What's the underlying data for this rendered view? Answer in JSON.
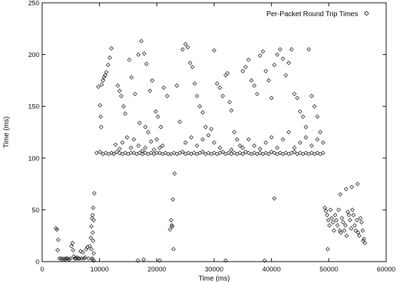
{
  "chart_data": {
    "type": "scatter",
    "xlabel": "Time (ms)",
    "ylabel": "Time (ms)",
    "xlim": [
      0,
      60000
    ],
    "ylim": [
      0,
      250
    ],
    "xticks": [
      0,
      10000,
      20000,
      30000,
      40000,
      50000,
      60000
    ],
    "yticks": [
      0,
      50,
      100,
      150,
      200,
      250
    ],
    "grid": false,
    "legend_position": "top-right",
    "marker": "diamond",
    "series": [
      {
        "name": "Per-Packet Round Trip Times",
        "points": [
          [
            2400,
            32
          ],
          [
            2600,
            31
          ],
          [
            2800,
            21
          ],
          [
            2700,
            11
          ],
          [
            3000,
            3
          ],
          [
            3300,
            3
          ],
          [
            3500,
            2
          ],
          [
            3800,
            3
          ],
          [
            4000,
            2
          ],
          [
            4200,
            3
          ],
          [
            4400,
            3
          ],
          [
            4700,
            2
          ],
          [
            4900,
            3
          ],
          [
            5100,
            15
          ],
          [
            5300,
            18
          ],
          [
            5400,
            11
          ],
          [
            5500,
            5
          ],
          [
            5700,
            3
          ],
          [
            5900,
            3
          ],
          [
            6100,
            4
          ],
          [
            6300,
            3
          ],
          [
            6500,
            3
          ],
          [
            6700,
            10
          ],
          [
            6900,
            3
          ],
          [
            7100,
            9
          ],
          [
            7300,
            3
          ],
          [
            7500,
            4
          ],
          [
            7700,
            12
          ],
          [
            7900,
            14
          ],
          [
            8100,
            3
          ],
          [
            8300,
            15
          ],
          [
            8500,
            23
          ],
          [
            8600,
            34
          ],
          [
            8700,
            42
          ],
          [
            8800,
            45
          ],
          [
            8900,
            52
          ],
          [
            9000,
            40
          ],
          [
            9100,
            66
          ],
          [
            8800,
            28
          ],
          [
            8900,
            20
          ],
          [
            9000,
            8
          ],
          [
            8700,
            3
          ],
          [
            8600,
            12
          ],
          [
            8800,
            2
          ],
          [
            9000,
            1
          ],
          [
            9500,
            105
          ],
          [
            9800,
            169
          ],
          [
            10100,
            151
          ],
          [
            10200,
            140
          ],
          [
            10300,
            130
          ],
          [
            10400,
            171
          ],
          [
            10600,
            175
          ],
          [
            10800,
            178
          ],
          [
            11000,
            180
          ],
          [
            11200,
            183
          ],
          [
            11500,
            190
          ],
          [
            11800,
            197
          ],
          [
            12100,
            206
          ],
          [
            10100,
            106
          ],
          [
            10600,
            104
          ],
          [
            11100,
            105
          ],
          [
            11600,
            104
          ],
          [
            12100,
            105
          ],
          [
            12500,
            104
          ],
          [
            13000,
            106
          ],
          [
            13500,
            105
          ],
          [
            14000,
            104
          ],
          [
            14500,
            105
          ],
          [
            15000,
            104
          ],
          [
            15500,
            105
          ],
          [
            16000,
            105
          ],
          [
            16500,
            104
          ],
          [
            17000,
            105
          ],
          [
            17500,
            104
          ],
          [
            18000,
            105
          ],
          [
            18500,
            104
          ],
          [
            19000,
            105
          ],
          [
            19500,
            104
          ],
          [
            20000,
            105
          ],
          [
            20500,
            105
          ],
          [
            21000,
            104
          ],
          [
            21500,
            105
          ],
          [
            22000,
            104
          ],
          [
            13200,
            170
          ],
          [
            13500,
            165
          ],
          [
            13800,
            160
          ],
          [
            14200,
            150
          ],
          [
            14500,
            143
          ],
          [
            12800,
            113
          ],
          [
            13500,
            109
          ],
          [
            14000,
            115
          ],
          [
            14800,
            120
          ],
          [
            15500,
            110
          ],
          [
            16000,
            118
          ],
          [
            16800,
            112
          ],
          [
            17500,
            107
          ],
          [
            18000,
            110
          ],
          [
            18500,
            125
          ],
          [
            19000,
            116
          ],
          [
            19500,
            108
          ],
          [
            20000,
            118
          ],
          [
            20500,
            110
          ],
          [
            21000,
            112
          ],
          [
            15200,
            195
          ],
          [
            15600,
            178
          ],
          [
            16200,
            162
          ],
          [
            16800,
            200
          ],
          [
            17300,
            213
          ],
          [
            17800,
            201
          ],
          [
            18200,
            191
          ],
          [
            18800,
            165
          ],
          [
            19200,
            175
          ],
          [
            19800,
            145
          ],
          [
            20200,
            140
          ],
          [
            20700,
            130
          ],
          [
            21200,
            168
          ],
          [
            21800,
            160
          ],
          [
            17000,
            134
          ],
          [
            18000,
            130
          ],
          [
            22500,
            40
          ],
          [
            22600,
            35
          ],
          [
            22700,
            34
          ],
          [
            22800,
            60
          ],
          [
            23100,
            85
          ],
          [
            22300,
            31
          ],
          [
            22900,
            12
          ],
          [
            23500,
            170
          ],
          [
            24000,
            135
          ],
          [
            24500,
            205
          ],
          [
            25000,
            210
          ],
          [
            25400,
            207
          ],
          [
            25800,
            192
          ],
          [
            26200,
            188
          ],
          [
            26600,
            172
          ],
          [
            27000,
            160
          ],
          [
            27500,
            150
          ],
          [
            28000,
            144
          ],
          [
            28500,
            130
          ],
          [
            29000,
            122
          ],
          [
            29500,
            128
          ],
          [
            30000,
            204
          ],
          [
            30500,
            172
          ],
          [
            31000,
            168
          ],
          [
            31500,
            160
          ],
          [
            32000,
            180
          ],
          [
            32300,
            182
          ],
          [
            32700,
            154
          ],
          [
            33000,
            146
          ],
          [
            33500,
            125
          ],
          [
            34000,
            118
          ],
          [
            34500,
            112
          ],
          [
            35000,
            184
          ],
          [
            35500,
            188
          ],
          [
            36000,
            195
          ],
          [
            36500,
            175
          ],
          [
            37000,
            170
          ],
          [
            37500,
            162
          ],
          [
            38000,
            199
          ],
          [
            38500,
            203
          ],
          [
            39000,
            184
          ],
          [
            39500,
            175
          ],
          [
            40000,
            158
          ],
          [
            40500,
            190
          ],
          [
            41000,
            200
          ],
          [
            41500,
            205
          ],
          [
            42000,
            196
          ],
          [
            42500,
            180
          ],
          [
            43000,
            192
          ],
          [
            43500,
            205
          ],
          [
            44000,
            162
          ],
          [
            44500,
            158
          ],
          [
            45000,
            145
          ],
          [
            45500,
            140
          ],
          [
            46000,
            130
          ],
          [
            46500,
            205
          ],
          [
            47000,
            160
          ],
          [
            47500,
            150
          ],
          [
            48000,
            140
          ],
          [
            48500,
            125
          ],
          [
            49000,
            115
          ],
          [
            22500,
            104
          ],
          [
            23000,
            105
          ],
          [
            23500,
            104
          ],
          [
            24000,
            105
          ],
          [
            24500,
            106
          ],
          [
            25000,
            104
          ],
          [
            25500,
            105
          ],
          [
            26000,
            104
          ],
          [
            26500,
            105
          ],
          [
            27000,
            104
          ],
          [
            27500,
            105
          ],
          [
            28000,
            106
          ],
          [
            28500,
            104
          ],
          [
            29000,
            105
          ],
          [
            29500,
            104
          ],
          [
            30000,
            105
          ],
          [
            30500,
            104
          ],
          [
            31000,
            105
          ],
          [
            31500,
            106
          ],
          [
            32000,
            104
          ],
          [
            32500,
            105
          ],
          [
            33000,
            104
          ],
          [
            33500,
            105
          ],
          [
            34000,
            104
          ],
          [
            34500,
            105
          ],
          [
            35000,
            104
          ],
          [
            35500,
            106
          ],
          [
            36000,
            105
          ],
          [
            36500,
            104
          ],
          [
            37000,
            105
          ],
          [
            37500,
            104
          ],
          [
            38000,
            105
          ],
          [
            38500,
            104
          ],
          [
            39000,
            105
          ],
          [
            39500,
            104
          ],
          [
            40000,
            106
          ],
          [
            40500,
            105
          ],
          [
            41000,
            104
          ],
          [
            41500,
            105
          ],
          [
            42000,
            104
          ],
          [
            42500,
            105
          ],
          [
            43000,
            104
          ],
          [
            43500,
            105
          ],
          [
            44000,
            106
          ],
          [
            44500,
            104
          ],
          [
            45000,
            105
          ],
          [
            45500,
            104
          ],
          [
            46000,
            105
          ],
          [
            46500,
            104
          ],
          [
            47000,
            105
          ],
          [
            47500,
            104
          ],
          [
            48000,
            105
          ],
          [
            48500,
            104
          ],
          [
            49000,
            105
          ],
          [
            25000,
            115
          ],
          [
            26000,
            120
          ],
          [
            27000,
            112
          ],
          [
            28000,
            118
          ],
          [
            30000,
            115
          ],
          [
            31000,
            110
          ],
          [
            33000,
            108
          ],
          [
            35000,
            110
          ],
          [
            36000,
            118
          ],
          [
            37000,
            112
          ],
          [
            38000,
            109
          ],
          [
            39000,
            115
          ],
          [
            40000,
            120
          ],
          [
            41000,
            110
          ],
          [
            42000,
            118
          ],
          [
            43000,
            125
          ],
          [
            44000,
            110
          ],
          [
            45000,
            115
          ],
          [
            46000,
            120
          ],
          [
            47000,
            112
          ],
          [
            48000,
            118
          ],
          [
            40500,
            61
          ],
          [
            32000,
            1
          ],
          [
            38800,
            1
          ],
          [
            17700,
            2
          ],
          [
            20500,
            1
          ],
          [
            16700,
            1
          ],
          [
            49300,
            52
          ],
          [
            49500,
            49
          ],
          [
            49700,
            45
          ],
          [
            49900,
            40
          ],
          [
            50100,
            35
          ],
          [
            50300,
            50
          ],
          [
            50500,
            42
          ],
          [
            50700,
            38
          ],
          [
            50900,
            30
          ],
          [
            51100,
            45
          ],
          [
            51300,
            40
          ],
          [
            51500,
            35
          ],
          [
            51700,
            50
          ],
          [
            51900,
            30
          ],
          [
            52100,
            28
          ],
          [
            52300,
            42
          ],
          [
            52500,
            38
          ],
          [
            52700,
            30
          ],
          [
            52900,
            35
          ],
          [
            53100,
            25
          ],
          [
            53300,
            48
          ],
          [
            53500,
            45
          ],
          [
            53700,
            40
          ],
          [
            53900,
            32
          ],
          [
            54100,
            50
          ],
          [
            54300,
            45
          ],
          [
            54500,
            35
          ],
          [
            54700,
            30
          ],
          [
            54900,
            40
          ],
          [
            55100,
            28
          ],
          [
            55300,
            25
          ],
          [
            55500,
            42
          ],
          [
            55700,
            38
          ],
          [
            55900,
            30
          ],
          [
            56100,
            22
          ],
          [
            56300,
            18
          ],
          [
            52000,
            65
          ],
          [
            53000,
            70
          ],
          [
            54000,
            72
          ],
          [
            55000,
            75
          ],
          [
            56000,
            20
          ],
          [
            49800,
            12
          ]
        ]
      }
    ]
  }
}
